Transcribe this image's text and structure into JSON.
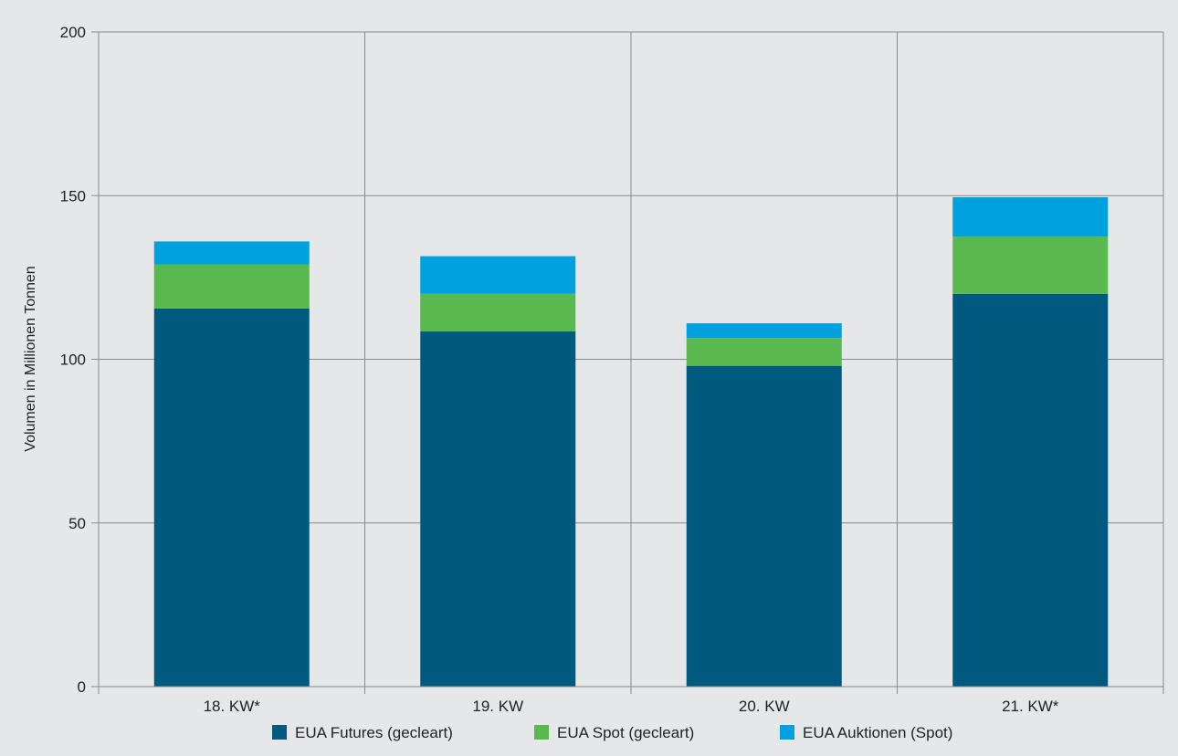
{
  "chart_data": {
    "type": "bar",
    "stacked": true,
    "title": "",
    "xlabel": "",
    "ylabel": "Volumen in Millionen Tonnen",
    "ylim": [
      0,
      200
    ],
    "yticks": [
      0,
      50,
      100,
      150,
      200
    ],
    "categories": [
      "18. KW*",
      "19. KW",
      "20. KW",
      "21. KW*"
    ],
    "series": [
      {
        "name": "EUA Futures (gecleart)",
        "color": "#005a80",
        "values": [
          115.5,
          108.5,
          98,
          120
        ]
      },
      {
        "name": "EUA Spot (gecleart)",
        "color": "#59b94f",
        "values": [
          13.5,
          11.5,
          8.5,
          17.5
        ]
      },
      {
        "name": "EUA Auktionen (Spot)",
        "color": "#00a1dc",
        "values": [
          7,
          11.5,
          4.5,
          12
        ]
      }
    ],
    "grid": true,
    "legend_position": "bottom"
  }
}
